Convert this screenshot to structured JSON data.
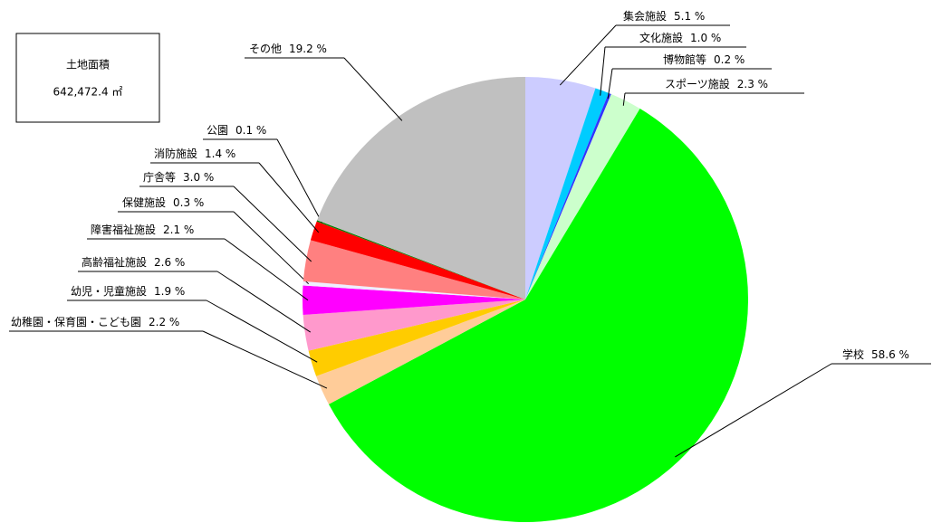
{
  "chart_data": {
    "type": "pie",
    "annotations": [
      "土地面積",
      "642,472.4 ㎡"
    ],
    "categories": [
      "集会施設",
      "文化施設",
      "博物館等",
      "スポーツ施設",
      "学校",
      "幼稚園・保育園・こども園",
      "幼児・児童施設",
      "高齢福祉施設",
      "障害福祉施設",
      "保健施設",
      "庁舎等",
      "消防施設",
      "公園",
      "その他"
    ],
    "values": [
      5.1,
      1.0,
      0.2,
      2.3,
      58.6,
      2.2,
      1.9,
      2.6,
      2.1,
      0.3,
      3.0,
      1.4,
      0.1,
      19.2
    ],
    "value_labels": [
      "5.1 %",
      "1.0 %",
      "0.2 %",
      "2.3 %",
      "58.6 %",
      "2.2 %",
      "1.9 %",
      "2.6 %",
      "2.1 %",
      "0.3 %",
      "3.0 %",
      "1.4 %",
      "0.1 %",
      "19.2 %"
    ],
    "colors": [
      "#ccccff",
      "#00ccff",
      "#3333ff",
      "#ccffcc",
      "#00ff00",
      "#ffcc99",
      "#ffcc00",
      "#ff99cc",
      "#ff00ff",
      "#eeeeff",
      "#ff8080",
      "#ff0000",
      "#008000",
      "#c0c0c0"
    ]
  }
}
